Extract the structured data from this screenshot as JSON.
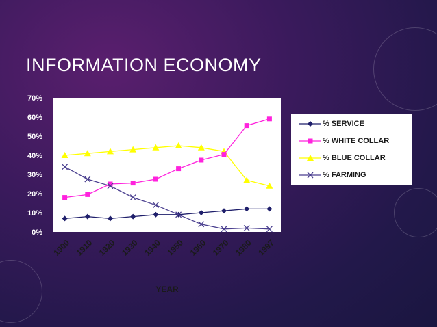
{
  "slide": {
    "title": "INFORMATION ECONOMY"
  },
  "colors": {
    "service": "#1f1f6b",
    "white_collar": "#ff22dd",
    "blue_collar": "#ffff00",
    "farming": "#4a3f8f"
  },
  "chart_data": {
    "type": "line",
    "categories": [
      "1900",
      "1910",
      "1920",
      "1930",
      "1940",
      "1950",
      "1960",
      "1970",
      "1980",
      "1997"
    ],
    "xlabel": "YEAR",
    "ylabel": "",
    "ylim": [
      0,
      70
    ],
    "yticks": [
      "0%",
      "10%",
      "20%",
      "30%",
      "40%",
      "50%",
      "60%",
      "70%"
    ],
    "grid": false,
    "legend_position": "right",
    "series": [
      {
        "name": "% SERVICE",
        "marker": "diamond",
        "values": [
          7,
          8,
          7,
          8,
          9,
          9,
          10,
          11,
          12,
          12
        ]
      },
      {
        "name": "% WHITE COLLAR",
        "marker": "square",
        "values": [
          18,
          19.5,
          25,
          25.5,
          27.5,
          33,
          37.5,
          40.5,
          55.5,
          59
        ]
      },
      {
        "name": "% BLUE COLLAR",
        "marker": "triangle",
        "values": [
          40,
          41,
          42,
          43,
          44,
          45,
          44,
          42,
          27,
          24
        ]
      },
      {
        "name": "% FARMING",
        "marker": "x",
        "values": [
          34,
          27.5,
          24,
          18,
          14,
          9,
          4,
          1.5,
          2,
          1.5
        ]
      }
    ]
  }
}
